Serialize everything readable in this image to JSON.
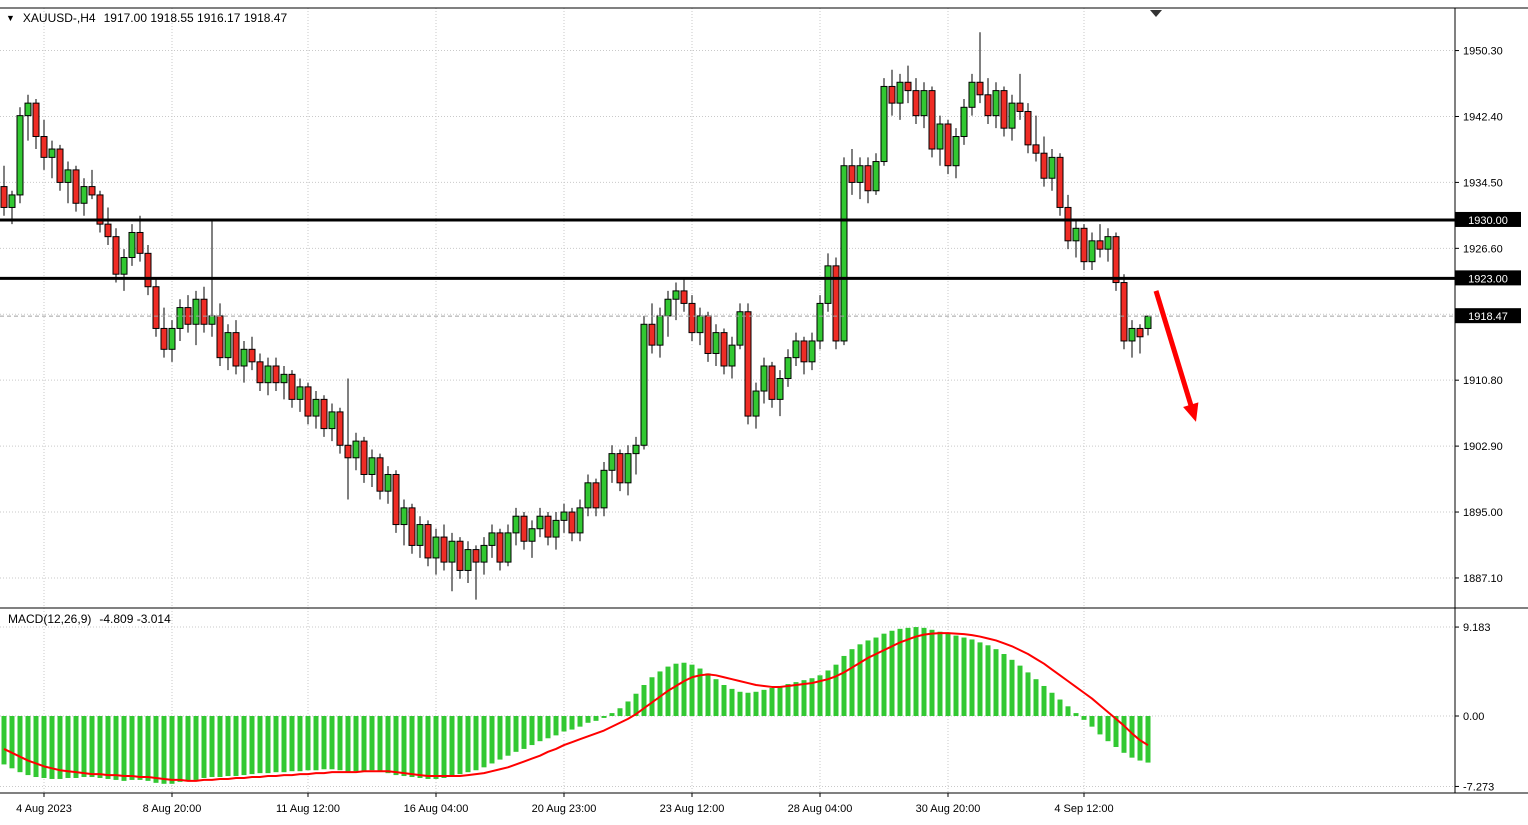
{
  "header": {
    "dropdown_icon": "▼",
    "symbol_period": "XAUUSD-,H4",
    "ohlc_text": "1917.00 1918.55 1916.17 1918.47"
  },
  "chart_data": [
    {
      "type": "candlestick",
      "title": "XAUUSD-,H4",
      "x_labels": [
        "4 Aug 2023",
        "8 Aug 20:00",
        "11 Aug 12:00",
        "16 Aug 04:00",
        "20 Aug 23:00",
        "23 Aug 12:00",
        "28 Aug 04:00",
        "30 Aug 20:00",
        "4 Sep 12:00"
      ],
      "x_label_indices": [
        5,
        21,
        38,
        54,
        70,
        86,
        102,
        118,
        135
      ],
      "y_ticks": [
        1950.3,
        1942.4,
        1934.5,
        1926.6,
        1918.7,
        1910.8,
        1902.9,
        1895.0,
        1887.1
      ],
      "y_ticks_hidden_labels": [
        1918.7
      ],
      "y_range": [
        1883.5,
        1955.4
      ],
      "hlines": [
        {
          "price": 1930.0,
          "label": "1930.00"
        },
        {
          "price": 1923.0,
          "label": "1923.00"
        }
      ],
      "bid_line": {
        "price": 1918.47,
        "label": "1918.47"
      },
      "shift_marker_index": 144,
      "annotations": {
        "arrow": {
          "color": "#FF0000",
          "from": {
            "index": 144,
            "price": 1921.5
          },
          "to": {
            "index": 149,
            "price": 1905.8
          }
        }
      },
      "colors": {
        "background": "#FFFFFF",
        "bull": "#32C832",
        "bear": "#EF2C25",
        "outline": "#000000",
        "grid": "#C9C9C9",
        "hline": "#000000",
        "bid_line": "#A0A0A0",
        "badge_bg": "#000000",
        "badge_text": "#FFFFFF"
      },
      "ohlc": [
        [
          1934.0,
          1936.5,
          1930.5,
          1931.5
        ],
        [
          1931.5,
          1933.5,
          1929.5,
          1933.0
        ],
        [
          1933.0,
          1943.5,
          1932.0,
          1942.5
        ],
        [
          1942.5,
          1945.0,
          1939.5,
          1944.0
        ],
        [
          1944.0,
          1944.5,
          1938.5,
          1940.0
        ],
        [
          1940.0,
          1942.0,
          1936.0,
          1937.5
        ],
        [
          1937.5,
          1939.5,
          1935.0,
          1938.5
        ],
        [
          1938.5,
          1939.0,
          1933.5,
          1934.5
        ],
        [
          1934.5,
          1937.0,
          1932.0,
          1936.0
        ],
        [
          1936.0,
          1936.5,
          1931.0,
          1932.0
        ],
        [
          1932.0,
          1935.0,
          1930.5,
          1934.0
        ],
        [
          1934.0,
          1936.0,
          1932.5,
          1933.0
        ],
        [
          1933.0,
          1933.5,
          1928.5,
          1929.5
        ],
        [
          1929.5,
          1931.5,
          1927.0,
          1928.0
        ],
        [
          1928.0,
          1929.0,
          1922.5,
          1923.5
        ],
        [
          1923.5,
          1926.5,
          1921.5,
          1925.5
        ],
        [
          1925.5,
          1929.5,
          1924.5,
          1928.5
        ],
        [
          1928.5,
          1930.5,
          1925.0,
          1926.0
        ],
        [
          1926.0,
          1927.0,
          1921.0,
          1922.0
        ],
        [
          1922.0,
          1923.0,
          1916.0,
          1917.0
        ],
        [
          1917.0,
          1919.5,
          1913.5,
          1914.5
        ],
        [
          1914.5,
          1918.0,
          1913.0,
          1917.0
        ],
        [
          1917.0,
          1920.5,
          1915.5,
          1919.5
        ],
        [
          1919.5,
          1921.0,
          1916.5,
          1917.5
        ],
        [
          1917.5,
          1921.5,
          1915.0,
          1920.5
        ],
        [
          1920.5,
          1922.0,
          1916.5,
          1917.5
        ],
        [
          1917.5,
          1930.0,
          1916.0,
          1918.5
        ],
        [
          1918.5,
          1920.0,
          1912.5,
          1913.5
        ],
        [
          1913.5,
          1917.5,
          1912.0,
          1916.5
        ],
        [
          1916.5,
          1918.0,
          1911.5,
          1912.5
        ],
        [
          1912.5,
          1915.5,
          1910.5,
          1914.5
        ],
        [
          1914.5,
          1916.0,
          1912.0,
          1913.0
        ],
        [
          1913.0,
          1914.0,
          1909.5,
          1910.5
        ],
        [
          1910.5,
          1913.5,
          1909.0,
          1912.5
        ],
        [
          1912.5,
          1913.5,
          1909.5,
          1910.5
        ],
        [
          1910.5,
          1912.5,
          1908.5,
          1911.5
        ],
        [
          1911.5,
          1912.0,
          1907.5,
          1908.5
        ],
        [
          1908.5,
          1911.0,
          1907.0,
          1910.0
        ],
        [
          1910.0,
          1910.5,
          1905.5,
          1906.5
        ],
        [
          1906.5,
          1909.5,
          1905.0,
          1908.5
        ],
        [
          1908.5,
          1909.0,
          1904.0,
          1905.0
        ],
        [
          1905.0,
          1908.0,
          1903.5,
          1907.0
        ],
        [
          1907.0,
          1907.5,
          1902.0,
          1903.0
        ],
        [
          1903.0,
          1911.0,
          1896.5,
          1901.5
        ],
        [
          1901.5,
          1904.5,
          1900.0,
          1903.5
        ],
        [
          1903.5,
          1904.0,
          1898.5,
          1899.5
        ],
        [
          1899.5,
          1902.5,
          1898.0,
          1901.5
        ],
        [
          1901.5,
          1902.0,
          1896.5,
          1897.5
        ],
        [
          1897.5,
          1900.5,
          1896.0,
          1899.5
        ],
        [
          1899.5,
          1900.0,
          1892.5,
          1893.5
        ],
        [
          1893.5,
          1896.5,
          1891.0,
          1895.5
        ],
        [
          1895.5,
          1896.0,
          1890.0,
          1891.0
        ],
        [
          1891.0,
          1894.5,
          1889.5,
          1893.5
        ],
        [
          1893.5,
          1894.0,
          1888.5,
          1889.5
        ],
        [
          1889.5,
          1893.0,
          1887.5,
          1892.0
        ],
        [
          1892.0,
          1893.5,
          1888.0,
          1889.0
        ],
        [
          1889.0,
          1892.5,
          1885.5,
          1891.5
        ],
        [
          1891.5,
          1892.0,
          1887.0,
          1888.0
        ],
        [
          1888.0,
          1891.5,
          1886.5,
          1890.5
        ],
        [
          1890.5,
          1891.0,
          1884.5,
          1889.0
        ],
        [
          1889.0,
          1892.0,
          1887.5,
          1891.0
        ],
        [
          1891.0,
          1893.5,
          1889.5,
          1892.5
        ],
        [
          1892.5,
          1893.0,
          1888.0,
          1889.0
        ],
        [
          1889.0,
          1893.5,
          1888.5,
          1892.5
        ],
        [
          1892.5,
          1895.5,
          1891.0,
          1894.5
        ],
        [
          1894.5,
          1895.0,
          1890.5,
          1891.5
        ],
        [
          1891.5,
          1894.0,
          1889.5,
          1893.0
        ],
        [
          1893.0,
          1895.5,
          1892.0,
          1894.5
        ],
        [
          1894.5,
          1895.0,
          1891.0,
          1892.0
        ],
        [
          1892.0,
          1895.0,
          1890.5,
          1894.0
        ],
        [
          1894.0,
          1896.0,
          1892.5,
          1895.0
        ],
        [
          1895.0,
          1895.5,
          1891.5,
          1892.5
        ],
        [
          1892.5,
          1896.5,
          1891.5,
          1895.5
        ],
        [
          1895.5,
          1899.5,
          1894.5,
          1898.5
        ],
        [
          1898.5,
          1899.0,
          1894.5,
          1895.5
        ],
        [
          1895.5,
          1901.0,
          1894.5,
          1900.0
        ],
        [
          1900.0,
          1903.0,
          1898.5,
          1902.0
        ],
        [
          1902.0,
          1902.5,
          1897.5,
          1898.5
        ],
        [
          1898.5,
          1903.0,
          1897.0,
          1902.0
        ],
        [
          1902.0,
          1904.0,
          1899.5,
          1903.0
        ],
        [
          1903.0,
          1918.5,
          1902.5,
          1917.5
        ],
        [
          1917.5,
          1920.0,
          1914.0,
          1915.0
        ],
        [
          1915.0,
          1919.5,
          1913.5,
          1918.5
        ],
        [
          1918.5,
          1921.5,
          1916.0,
          1920.5
        ],
        [
          1920.5,
          1922.5,
          1918.0,
          1921.5
        ],
        [
          1921.5,
          1923.0,
          1919.0,
          1920.0
        ],
        [
          1920.0,
          1921.0,
          1915.5,
          1916.5
        ],
        [
          1916.5,
          1919.5,
          1915.0,
          1918.5
        ],
        [
          1918.5,
          1919.0,
          1913.0,
          1914.0
        ],
        [
          1914.0,
          1917.5,
          1912.5,
          1916.5
        ],
        [
          1916.5,
          1917.0,
          1911.5,
          1912.5
        ],
        [
          1912.5,
          1916.0,
          1911.0,
          1915.0
        ],
        [
          1915.0,
          1920.0,
          1914.5,
          1919.0
        ],
        [
          1919.0,
          1920.0,
          1905.5,
          1906.5
        ],
        [
          1906.5,
          1910.5,
          1905.0,
          1909.5
        ],
        [
          1909.5,
          1913.5,
          1908.0,
          1912.5
        ],
        [
          1912.5,
          1913.0,
          1907.5,
          1908.5
        ],
        [
          1908.5,
          1912.0,
          1906.5,
          1911.0
        ],
        [
          1911.0,
          1914.5,
          1910.0,
          1913.5
        ],
        [
          1913.5,
          1916.5,
          1912.5,
          1915.5
        ],
        [
          1915.5,
          1916.0,
          1911.5,
          1913.0
        ],
        [
          1913.0,
          1916.5,
          1912.0,
          1915.5
        ],
        [
          1915.5,
          1921.0,
          1914.5,
          1920.0
        ],
        [
          1920.0,
          1926.0,
          1919.0,
          1924.5
        ],
        [
          1924.5,
          1925.5,
          1914.5,
          1915.5
        ],
        [
          1915.5,
          1937.5,
          1915.0,
          1936.5
        ],
        [
          1936.5,
          1938.5,
          1933.0,
          1934.5
        ],
        [
          1934.5,
          1937.5,
          1932.5,
          1936.5
        ],
        [
          1936.5,
          1937.5,
          1932.0,
          1933.5
        ],
        [
          1933.5,
          1938.0,
          1933.0,
          1937.0
        ],
        [
          1937.0,
          1947.0,
          1936.5,
          1946.0
        ],
        [
          1946.0,
          1948.0,
          1942.5,
          1944.0
        ],
        [
          1944.0,
          1947.5,
          1942.0,
          1946.5
        ],
        [
          1946.5,
          1948.5,
          1944.0,
          1945.5
        ],
        [
          1945.5,
          1947.0,
          1941.5,
          1942.5
        ],
        [
          1942.5,
          1946.5,
          1941.0,
          1945.5
        ],
        [
          1945.5,
          1946.0,
          1937.5,
          1938.5
        ],
        [
          1938.5,
          1942.5,
          1936.5,
          1941.5
        ],
        [
          1941.5,
          1942.0,
          1935.5,
          1936.5
        ],
        [
          1936.5,
          1941.0,
          1935.0,
          1940.0
        ],
        [
          1940.0,
          1944.5,
          1939.0,
          1943.5
        ],
        [
          1943.5,
          1947.5,
          1942.5,
          1946.5
        ],
        [
          1946.5,
          1952.5,
          1944.0,
          1945.0
        ],
        [
          1945.0,
          1947.0,
          1941.5,
          1942.5
        ],
        [
          1942.5,
          1946.5,
          1941.0,
          1945.5
        ],
        [
          1945.5,
          1946.0,
          1940.0,
          1941.0
        ],
        [
          1941.0,
          1945.0,
          1939.5,
          1944.0
        ],
        [
          1944.0,
          1947.5,
          1942.0,
          1943.0
        ],
        [
          1943.0,
          1944.0,
          1938.0,
          1939.0
        ],
        [
          1939.0,
          1942.5,
          1937.0,
          1938.0
        ],
        [
          1938.0,
          1940.0,
          1934.0,
          1935.0
        ],
        [
          1935.0,
          1938.5,
          1933.5,
          1937.5
        ],
        [
          1937.5,
          1938.0,
          1930.5,
          1931.5
        ],
        [
          1931.5,
          1933.0,
          1926.5,
          1927.5
        ],
        [
          1927.5,
          1930.0,
          1925.5,
          1929.0
        ],
        [
          1929.0,
          1929.5,
          1924.0,
          1925.0
        ],
        [
          1925.0,
          1928.5,
          1924.0,
          1927.5
        ],
        [
          1927.5,
          1929.5,
          1925.5,
          1926.5
        ],
        [
          1926.5,
          1929.0,
          1925.0,
          1928.0
        ],
        [
          1928.0,
          1928.5,
          1921.5,
          1922.5
        ],
        [
          1922.5,
          1923.5,
          1914.5,
          1915.5
        ],
        [
          1915.5,
          1918.0,
          1913.5,
          1917.0
        ],
        [
          1917.0,
          1917.5,
          1914.0,
          1916.0
        ],
        [
          1917.0,
          1918.55,
          1916.17,
          1918.47
        ]
      ]
    },
    {
      "type": "macd",
      "label": "MACD(12,26,9)",
      "values_text": "-4.809 -3.014",
      "macd_value": -4.809,
      "signal_value": -3.014,
      "y_tick_values": [
        9.183,
        0,
        -7.273
      ],
      "y_tick_labels": [
        "9.183",
        "0.00",
        "-7.273"
      ],
      "y_range": [
        -7.95,
        11.15
      ],
      "colors": {
        "histogram": "#32C832",
        "signal": "#FF0000"
      },
      "histogram": [
        -5.0,
        -5.4,
        -5.8,
        -6.1,
        -6.3,
        -6.4,
        -6.5,
        -6.5,
        -6.4,
        -6.4,
        -6.3,
        -6.3,
        -6.4,
        -6.5,
        -6.6,
        -6.7,
        -6.6,
        -6.6,
        -6.7,
        -6.9,
        -7.0,
        -7.0,
        -6.8,
        -6.7,
        -6.6,
        -6.4,
        -6.3,
        -6.3,
        -6.2,
        -6.2,
        -6.1,
        -6.0,
        -5.9,
        -5.9,
        -5.8,
        -5.8,
        -5.7,
        -5.7,
        -5.6,
        -5.6,
        -5.5,
        -5.5,
        -5.6,
        -5.8,
        -5.7,
        -5.7,
        -5.6,
        -5.7,
        -5.9,
        -6.1,
        -6.2,
        -6.3,
        -6.4,
        -6.5,
        -6.5,
        -6.4,
        -6.2,
        -6.0,
        -5.8,
        -5.6,
        -5.3,
        -4.9,
        -4.5,
        -4.1,
        -3.7,
        -3.4,
        -3.0,
        -2.6,
        -2.3,
        -2.0,
        -1.6,
        -1.4,
        -1.1,
        -0.7,
        -0.5,
        -0.2,
        0.3,
        0.8,
        1.5,
        2.3,
        3.2,
        4.0,
        4.6,
        5.1,
        5.4,
        5.5,
        5.3,
        4.9,
        4.4,
        3.8,
        3.2,
        2.8,
        2.5,
        2.4,
        2.5,
        2.7,
        2.9,
        3.1,
        3.3,
        3.5,
        3.7,
        3.9,
        4.2,
        4.7,
        5.3,
        6.2,
        6.9,
        7.4,
        7.8,
        8.1,
        8.5,
        8.8,
        9.0,
        9.1,
        9.183,
        9.1,
        8.9,
        8.7,
        8.5,
        8.3,
        8.1,
        7.9,
        7.6,
        7.3,
        6.9,
        6.4,
        5.8,
        5.2,
        4.5,
        3.8,
        3.1,
        2.4,
        1.7,
        1.0,
        0.3,
        -0.4,
        -1.1,
        -1.9,
        -2.6,
        -3.2,
        -3.8,
        -4.3,
        -4.6,
        -4.809
      ],
      "signal": [
        -3.4,
        -3.8,
        -4.2,
        -4.6,
        -4.9,
        -5.2,
        -5.4,
        -5.6,
        -5.7,
        -5.8,
        -5.9,
        -6.0,
        -6.0,
        -6.1,
        -6.1,
        -6.2,
        -6.2,
        -6.3,
        -6.3,
        -6.4,
        -6.5,
        -6.6,
        -6.6,
        -6.7,
        -6.7,
        -6.6,
        -6.6,
        -6.5,
        -6.5,
        -6.4,
        -6.4,
        -6.3,
        -6.3,
        -6.2,
        -6.2,
        -6.1,
        -6.1,
        -6.0,
        -6.0,
        -5.9,
        -5.9,
        -5.8,
        -5.8,
        -5.8,
        -5.8,
        -5.7,
        -5.7,
        -5.7,
        -5.7,
        -5.8,
        -5.9,
        -6.0,
        -6.1,
        -6.2,
        -6.2,
        -6.2,
        -6.2,
        -6.2,
        -6.1,
        -6.0,
        -5.9,
        -5.7,
        -5.5,
        -5.3,
        -5.0,
        -4.7,
        -4.4,
        -4.1,
        -3.7,
        -3.4,
        -3.0,
        -2.7,
        -2.4,
        -2.1,
        -1.8,
        -1.5,
        -1.1,
        -0.7,
        -0.3,
        0.2,
        0.8,
        1.4,
        2.0,
        2.6,
        3.1,
        3.6,
        4.0,
        4.2,
        4.3,
        4.2,
        4.0,
        3.8,
        3.6,
        3.4,
        3.2,
        3.1,
        3.0,
        3.0,
        3.1,
        3.2,
        3.3,
        3.4,
        3.6,
        3.8,
        4.1,
        4.5,
        5.0,
        5.5,
        6.0,
        6.4,
        6.8,
        7.2,
        7.6,
        7.9,
        8.2,
        8.4,
        8.5,
        8.55,
        8.55,
        8.5,
        8.45,
        8.35,
        8.2,
        8.0,
        7.8,
        7.5,
        7.2,
        6.8,
        6.4,
        5.9,
        5.4,
        4.8,
        4.2,
        3.6,
        3.0,
        2.4,
        1.8,
        1.1,
        0.4,
        -0.3,
        -1.0,
        -1.8,
        -2.5,
        -3.014
      ]
    }
  ]
}
